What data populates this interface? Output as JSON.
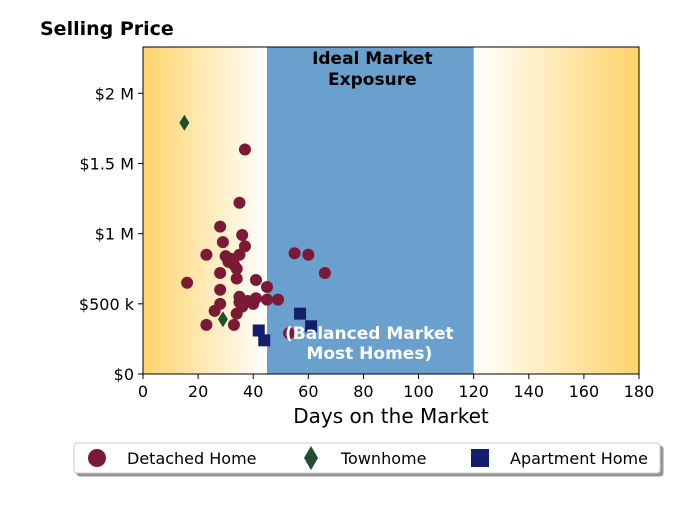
{
  "chart_data": {
    "type": "scatter",
    "title": "Selling Price",
    "xlabel": "Days on the Market",
    "ylabel": "",
    "xlim": [
      0,
      180
    ],
    "ylim": [
      0,
      2330000
    ],
    "xticks": [
      0,
      20,
      40,
      60,
      80,
      100,
      120,
      140,
      160,
      180
    ],
    "xtick_labels": [
      "0",
      "20",
      "40",
      "60",
      "80",
      "100",
      "120",
      "140",
      "160",
      "180"
    ],
    "yticks": [
      0,
      500000,
      1000000,
      1500000,
      2000000
    ],
    "ytick_labels": [
      "$0",
      "$500 k",
      "$1 M",
      "$1.5 M",
      "$2 M"
    ],
    "grid": false,
    "legend_position": "bottom",
    "regions": [
      {
        "x_start": 45,
        "x_end": 120,
        "color": "#6aa0cd",
        "label_top": [
          "Ideal Market",
          "Exposure"
        ],
        "label_bottom": [
          "(Balanced Market",
          "Most Homes)"
        ]
      }
    ],
    "background_gradient": {
      "edge_color": "#ffd36b",
      "mid_color": "#ffffff"
    },
    "series": [
      {
        "name": "Detached Home",
        "marker": "circle",
        "color": "#7b1a36",
        "points": [
          [
            16,
            650000
          ],
          [
            23,
            350000
          ],
          [
            23,
            850000
          ],
          [
            26,
            450000
          ],
          [
            28,
            1050000
          ],
          [
            28,
            720000
          ],
          [
            28,
            600000
          ],
          [
            28,
            500000
          ],
          [
            29,
            940000
          ],
          [
            30,
            840000
          ],
          [
            31,
            800000
          ],
          [
            32,
            820000
          ],
          [
            33,
            350000
          ],
          [
            33,
            780000
          ],
          [
            34,
            430000
          ],
          [
            34,
            680000
          ],
          [
            34,
            750000
          ],
          [
            35,
            1220000
          ],
          [
            35,
            850000
          ],
          [
            35,
            510000
          ],
          [
            35,
            550000
          ],
          [
            36,
            990000
          ],
          [
            36,
            480000
          ],
          [
            37,
            1600000
          ],
          [
            37,
            910000
          ],
          [
            38,
            520000
          ],
          [
            40,
            500000
          ],
          [
            41,
            540000
          ],
          [
            41,
            670000
          ],
          [
            45,
            620000
          ],
          [
            45,
            530000
          ],
          [
            49,
            530000
          ],
          [
            53,
            290000
          ],
          [
            55,
            860000
          ],
          [
            60,
            850000
          ],
          [
            66,
            720000
          ]
        ]
      },
      {
        "name": "Townhome",
        "marker": "diamond",
        "color": "#1f4d2e",
        "points": [
          [
            15,
            1790000
          ],
          [
            29,
            390000
          ]
        ]
      },
      {
        "name": "Apartment Home",
        "marker": "square",
        "color": "#141f6b",
        "points": [
          [
            42,
            310000
          ],
          [
            44,
            240000
          ],
          [
            57,
            430000
          ],
          [
            61,
            340000
          ]
        ]
      }
    ]
  }
}
